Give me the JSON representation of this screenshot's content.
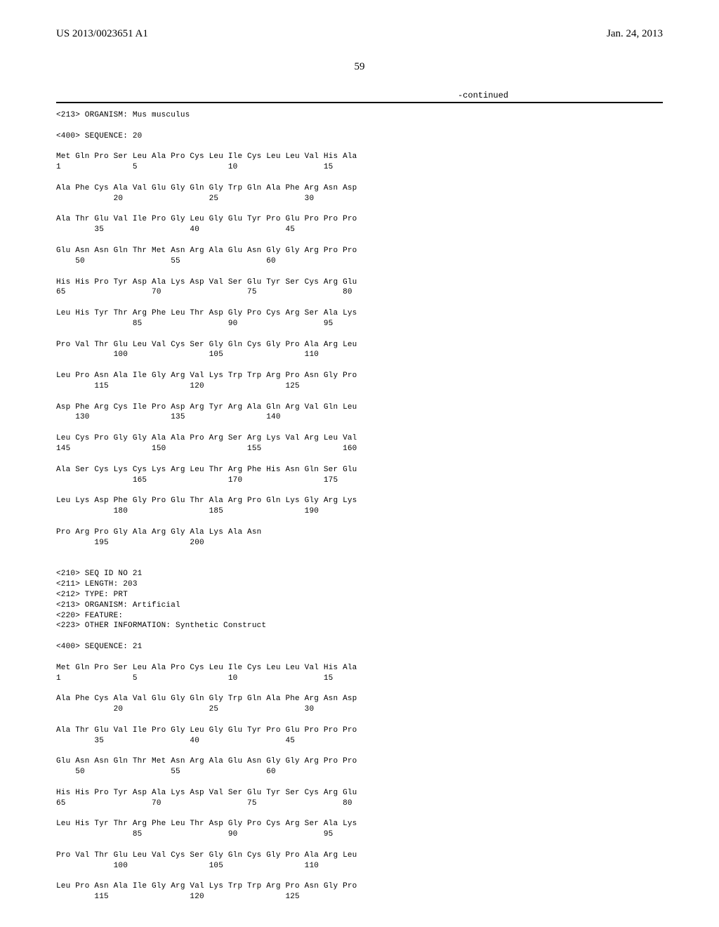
{
  "header": {
    "doc_number": "US 2013/0023651 A1",
    "pub_date": "Jan. 24, 2013"
  },
  "page_number": "59",
  "continued": "-continued",
  "seq20": {
    "organism_line": "<213> ORGANISM: Mus musculus",
    "header_line": "<400> SEQUENCE: 20",
    "rows": [
      {
        "aa": "Met Gln Pro Ser Leu Ala Pro Cys Leu Ile Cys Leu Leu Val His Ala",
        "num": "1               5                   10                  15"
      },
      {
        "aa": "Ala Phe Cys Ala Val Glu Gly Gln Gly Trp Gln Ala Phe Arg Asn Asp",
        "num": "            20                  25                  30"
      },
      {
        "aa": "Ala Thr Glu Val Ile Pro Gly Leu Gly Glu Tyr Pro Glu Pro Pro Pro",
        "num": "        35                  40                  45"
      },
      {
        "aa": "Glu Asn Asn Gln Thr Met Asn Arg Ala Glu Asn Gly Gly Arg Pro Pro",
        "num": "    50                  55                  60"
      },
      {
        "aa": "His His Pro Tyr Asp Ala Lys Asp Val Ser Glu Tyr Ser Cys Arg Glu",
        "num": "65                  70                  75                  80"
      },
      {
        "aa": "Leu His Tyr Thr Arg Phe Leu Thr Asp Gly Pro Cys Arg Ser Ala Lys",
        "num": "                85                  90                  95"
      },
      {
        "aa": "Pro Val Thr Glu Leu Val Cys Ser Gly Gln Cys Gly Pro Ala Arg Leu",
        "num": "            100                 105                 110"
      },
      {
        "aa": "Leu Pro Asn Ala Ile Gly Arg Val Lys Trp Trp Arg Pro Asn Gly Pro",
        "num": "        115                 120                 125"
      },
      {
        "aa": "Asp Phe Arg Cys Ile Pro Asp Arg Tyr Arg Ala Gln Arg Val Gln Leu",
        "num": "    130                 135                 140"
      },
      {
        "aa": "Leu Cys Pro Gly Gly Ala Ala Pro Arg Ser Arg Lys Val Arg Leu Val",
        "num": "145                 150                 155                 160"
      },
      {
        "aa": "Ala Ser Cys Lys Cys Lys Arg Leu Thr Arg Phe His Asn Gln Ser Glu",
        "num": "                165                 170                 175"
      },
      {
        "aa": "Leu Lys Asp Phe Gly Pro Glu Thr Ala Arg Pro Gln Lys Gly Arg Lys",
        "num": "            180                 185                 190"
      },
      {
        "aa": "Pro Arg Pro Gly Ala Arg Gly Ala Lys Ala Asn",
        "num": "        195                 200"
      }
    ]
  },
  "seq21": {
    "header_lines": [
      "<210> SEQ ID NO 21",
      "<211> LENGTH: 203",
      "<212> TYPE: PRT",
      "<213> ORGANISM: Artificial",
      "<220> FEATURE:",
      "<223> OTHER INFORMATION: Synthetic Construct"
    ],
    "seq_line": "<400> SEQUENCE: 21",
    "rows": [
      {
        "aa": "Met Gln Pro Ser Leu Ala Pro Cys Leu Ile Cys Leu Leu Val His Ala",
        "num": "1               5                   10                  15"
      },
      {
        "aa": "Ala Phe Cys Ala Val Glu Gly Gln Gly Trp Gln Ala Phe Arg Asn Asp",
        "num": "            20                  25                  30"
      },
      {
        "aa": "Ala Thr Glu Val Ile Pro Gly Leu Gly Glu Tyr Pro Glu Pro Pro Pro",
        "num": "        35                  40                  45"
      },
      {
        "aa": "Glu Asn Asn Gln Thr Met Asn Arg Ala Glu Asn Gly Gly Arg Pro Pro",
        "num": "    50                  55                  60"
      },
      {
        "aa": "His His Pro Tyr Asp Ala Lys Asp Val Ser Glu Tyr Ser Cys Arg Glu",
        "num": "65                  70                  75                  80"
      },
      {
        "aa": "Leu His Tyr Thr Arg Phe Leu Thr Asp Gly Pro Cys Arg Ser Ala Lys",
        "num": "                85                  90                  95"
      },
      {
        "aa": "Pro Val Thr Glu Leu Val Cys Ser Gly Gln Cys Gly Pro Ala Arg Leu",
        "num": "            100                 105                 110"
      },
      {
        "aa": "Leu Pro Asn Ala Ile Gly Arg Val Lys Trp Trp Arg Pro Asn Gly Pro",
        "num": "        115                 120                 125"
      }
    ]
  }
}
